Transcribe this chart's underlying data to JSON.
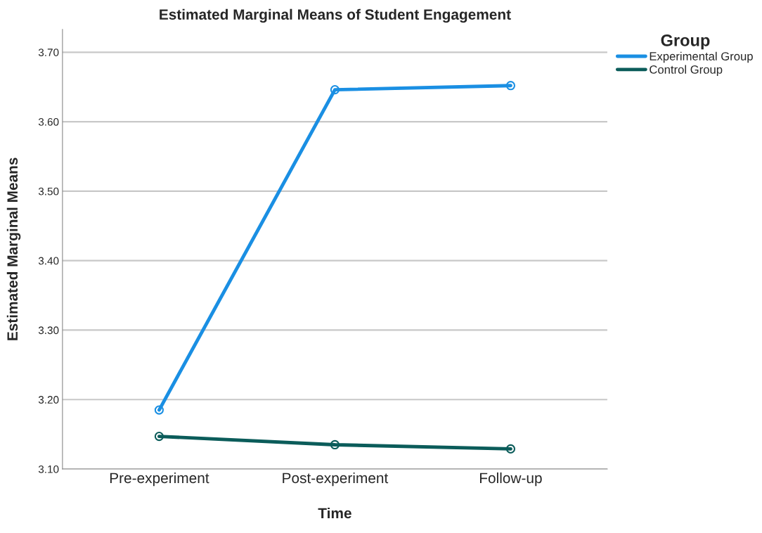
{
  "chart_data": {
    "type": "line",
    "title": "Estimated Marginal Means of Student Engagement",
    "xlabel": "Time",
    "ylabel": "Estimated Marginal Means",
    "legend_title": "Group",
    "categories": [
      "Pre-experiment",
      "Post-experiment",
      "Follow-up"
    ],
    "series": [
      {
        "name": "Experimental Group",
        "color": "#1a8fe3",
        "values": [
          3.185,
          3.646,
          3.652
        ]
      },
      {
        "name": "Control Group",
        "color": "#0b5c5a",
        "values": [
          3.147,
          3.135,
          3.129
        ]
      }
    ],
    "ylim": [
      3.1,
      3.733
    ],
    "yticks": [
      {
        "value": 3.1,
        "label": "3.10"
      },
      {
        "value": 3.2,
        "label": "3.20"
      },
      {
        "value": 3.3,
        "label": "3.30"
      },
      {
        "value": 3.4,
        "label": "3.40"
      },
      {
        "value": 3.5,
        "label": "3.50"
      },
      {
        "value": 3.6,
        "label": "3.60"
      },
      {
        "value": 3.7,
        "label": "3.70"
      }
    ],
    "grid": "y",
    "legend": "top right",
    "marker": "circle",
    "line_style": "solid"
  }
}
